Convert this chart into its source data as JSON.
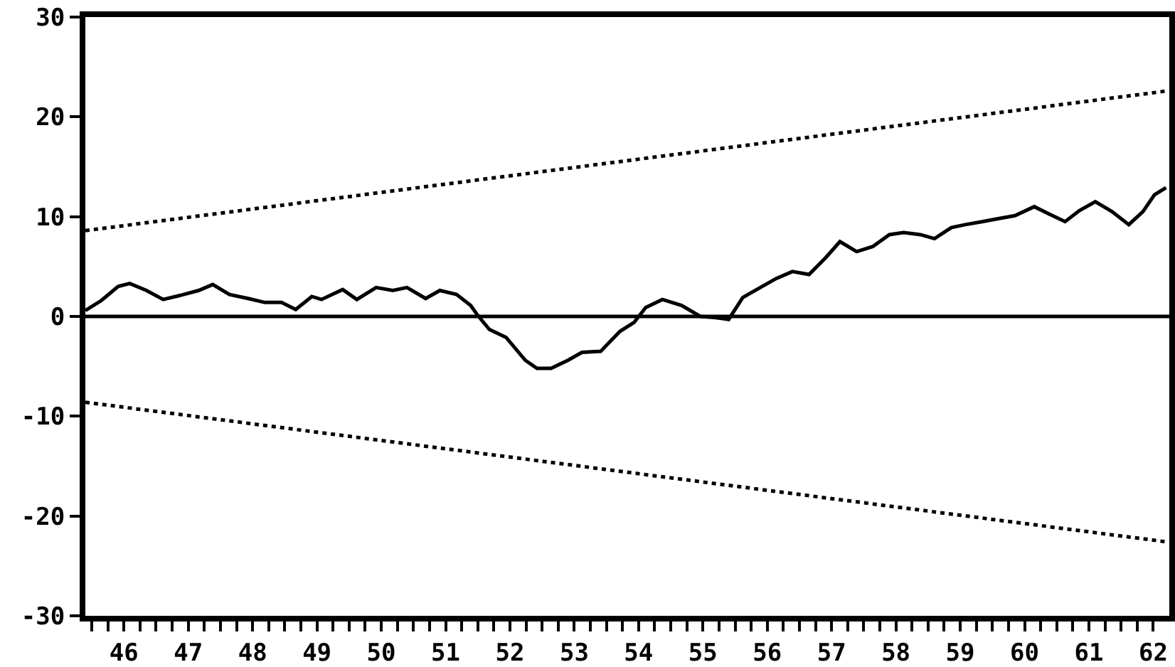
{
  "chart_data": {
    "type": "line",
    "xlim": [
      45.9,
      62.75
    ],
    "ylim": [
      -30,
      30
    ],
    "yticks": [
      -30,
      -20,
      -10,
      0,
      10,
      20,
      30
    ],
    "xticks": [
      {
        "value": 46,
        "label": null
      },
      {
        "value": 46.25,
        "label": null
      },
      {
        "value": 46.5,
        "label": "46"
      },
      {
        "value": 46.75,
        "label": null
      },
      {
        "value": 47,
        "label": null
      },
      {
        "value": 47.25,
        "label": null
      },
      {
        "value": 47.5,
        "label": "47"
      },
      {
        "value": 47.75,
        "label": null
      },
      {
        "value": 48,
        "label": null
      },
      {
        "value": 48.25,
        "label": null
      },
      {
        "value": 48.5,
        "label": "48"
      },
      {
        "value": 48.75,
        "label": null
      },
      {
        "value": 49,
        "label": null
      },
      {
        "value": 49.25,
        "label": null
      },
      {
        "value": 49.5,
        "label": "49"
      },
      {
        "value": 49.75,
        "label": null
      },
      {
        "value": 50,
        "label": null
      },
      {
        "value": 50.25,
        "label": null
      },
      {
        "value": 50.5,
        "label": "50"
      },
      {
        "value": 50.75,
        "label": null
      },
      {
        "value": 51,
        "label": null
      },
      {
        "value": 51.25,
        "label": null
      },
      {
        "value": 51.5,
        "label": "51"
      },
      {
        "value": 51.75,
        "label": null
      },
      {
        "value": 52,
        "label": null
      },
      {
        "value": 52.25,
        "label": null
      },
      {
        "value": 52.5,
        "label": "52"
      },
      {
        "value": 52.75,
        "label": null
      },
      {
        "value": 53,
        "label": null
      },
      {
        "value": 53.25,
        "label": null
      },
      {
        "value": 53.5,
        "label": "53"
      },
      {
        "value": 53.75,
        "label": null
      },
      {
        "value": 54,
        "label": null
      },
      {
        "value": 54.25,
        "label": null
      },
      {
        "value": 54.5,
        "label": "54"
      },
      {
        "value": 54.75,
        "label": null
      },
      {
        "value": 55,
        "label": null
      },
      {
        "value": 55.25,
        "label": null
      },
      {
        "value": 55.5,
        "label": "55"
      },
      {
        "value": 55.75,
        "label": null
      },
      {
        "value": 56,
        "label": null
      },
      {
        "value": 56.25,
        "label": null
      },
      {
        "value": 56.5,
        "label": "56"
      },
      {
        "value": 56.75,
        "label": null
      },
      {
        "value": 57,
        "label": null
      },
      {
        "value": 57.25,
        "label": null
      },
      {
        "value": 57.5,
        "label": "57"
      },
      {
        "value": 57.75,
        "label": null
      },
      {
        "value": 58,
        "label": null
      },
      {
        "value": 58.25,
        "label": null
      },
      {
        "value": 58.5,
        "label": "58"
      },
      {
        "value": 58.75,
        "label": null
      },
      {
        "value": 59,
        "label": null
      },
      {
        "value": 59.25,
        "label": null
      },
      {
        "value": 59.5,
        "label": "59"
      },
      {
        "value": 59.75,
        "label": null
      },
      {
        "value": 60,
        "label": null
      },
      {
        "value": 60.25,
        "label": null
      },
      {
        "value": 60.5,
        "label": "60"
      },
      {
        "value": 60.75,
        "label": null
      },
      {
        "value": 61,
        "label": null
      },
      {
        "value": 61.25,
        "label": null
      },
      {
        "value": 61.5,
        "label": "61"
      },
      {
        "value": 61.75,
        "label": null
      },
      {
        "value": 62,
        "label": null
      },
      {
        "value": 62.25,
        "label": null
      },
      {
        "value": 62.5,
        "label": "62"
      }
    ],
    "series": [
      {
        "color": "#000000",
        "line_style": "solid",
        "x": [
          45.9,
          46.15,
          46.41,
          46.59,
          46.85,
          47.11,
          47.37,
          47.66,
          47.88,
          48.14,
          48.43,
          48.69,
          48.95,
          49.17,
          49.42,
          49.57,
          49.9,
          50.12,
          50.42,
          50.68,
          50.9,
          51.19,
          51.41,
          51.67,
          51.89,
          52.0,
          52.18,
          52.44,
          52.74,
          52.92,
          53.14,
          53.4,
          53.62,
          53.91,
          54.21,
          54.43,
          54.61,
          54.87,
          55.17,
          55.46,
          55.68,
          55.9,
          56.12,
          56.42,
          56.64,
          56.89,
          57.15,
          57.41,
          57.63,
          57.89,
          58.14,
          58.4,
          58.62,
          58.88,
          59.1,
          59.36,
          59.58,
          59.84,
          60.09,
          60.35,
          60.65,
          60.9,
          61.13,
          61.35,
          61.6,
          61.86,
          62.12,
          62.34,
          62.52,
          62.7
        ],
        "values": [
          0.6,
          1.6,
          3.0,
          3.3,
          2.6,
          1.7,
          2.1,
          2.6,
          3.2,
          2.2,
          1.8,
          1.4,
          1.4,
          0.7,
          2.0,
          1.7,
          2.7,
          1.7,
          2.9,
          2.6,
          2.9,
          1.8,
          2.6,
          2.2,
          1.1,
          0.1,
          -1.3,
          -2.1,
          -4.4,
          -5.2,
          -5.2,
          -4.4,
          -3.6,
          -3.5,
          -1.5,
          -0.6,
          0.9,
          1.7,
          1.1,
          0.0,
          -0.1,
          -0.3,
          1.9,
          3.0,
          3.8,
          4.5,
          4.2,
          5.9,
          7.5,
          6.5,
          7.0,
          8.2,
          8.4,
          8.2,
          7.8,
          8.9,
          9.2,
          9.5,
          9.8,
          10.1,
          11.0,
          10.2,
          9.5,
          10.6,
          11.5,
          10.5,
          9.2,
          10.5,
          12.2,
          12.9
        ]
      },
      {
        "color": "#000000",
        "line_style": "dotted",
        "x": [
          45.9,
          62.72
        ],
        "values": [
          8.6,
          22.6
        ]
      },
      {
        "color": "#000000",
        "line_style": "dotted",
        "x": [
          45.9,
          62.72
        ],
        "values": [
          -8.6,
          -22.6
        ]
      }
    ],
    "ref_lines": [
      {
        "axis": "y",
        "value": 0,
        "color": "#000000"
      }
    ],
    "grid": false
  }
}
